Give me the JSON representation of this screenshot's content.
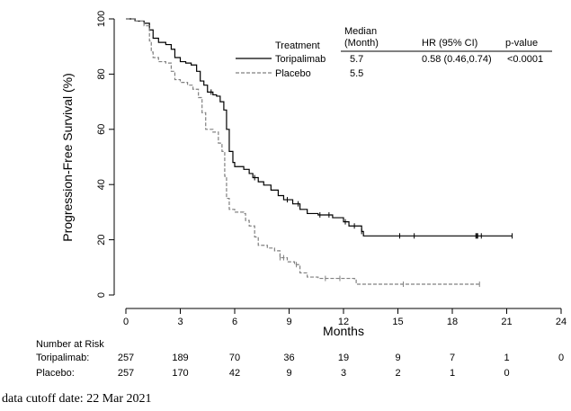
{
  "chart_data": {
    "type": "line",
    "subtype": "kaplan-meier",
    "title": "",
    "xlabel": "Months",
    "ylabel": "Progression-Free Survival (%)",
    "xlim": [
      0,
      24
    ],
    "ylim": [
      0,
      100
    ],
    "xticks": [
      0,
      3,
      6,
      9,
      12,
      15,
      18,
      21,
      24
    ],
    "yticks": [
      0,
      20,
      40,
      60,
      80,
      100
    ],
    "grid": false,
    "legend": {
      "placement": "top-right",
      "title": "Treatment",
      "header_median": "Median\n(Month)",
      "header_median_line1": "Median",
      "header_median_line2": "(Month)",
      "header_hr": "HR (95% CI)",
      "header_p": "p-value",
      "entries": [
        {
          "name": "Toripalimab",
          "median": "5.7",
          "hr": "0.58 (0.46,0.74)",
          "p": "<0.0001",
          "style": "solid",
          "color": "#000000"
        },
        {
          "name": "Placebo",
          "median": "5.5",
          "hr": "",
          "p": "",
          "style": "dashed",
          "color": "#808080"
        }
      ]
    },
    "series": [
      {
        "name": "Toripalimab",
        "color": "#000000",
        "style": "solid",
        "points": [
          [
            0,
            100
          ],
          [
            0.5,
            99.2
          ],
          [
            1.0,
            98.4
          ],
          [
            1.3,
            96
          ],
          [
            1.5,
            93
          ],
          [
            1.8,
            91.5
          ],
          [
            2.2,
            90.7
          ],
          [
            2.5,
            89
          ],
          [
            2.7,
            86
          ],
          [
            3.0,
            84.5
          ],
          [
            3.3,
            84
          ],
          [
            3.6,
            83.3
          ],
          [
            3.9,
            81
          ],
          [
            4.1,
            77.5
          ],
          [
            4.3,
            76
          ],
          [
            4.5,
            73.5
          ],
          [
            4.8,
            72.5
          ],
          [
            5.0,
            72
          ],
          [
            5.2,
            70
          ],
          [
            5.4,
            67
          ],
          [
            5.55,
            60
          ],
          [
            5.7,
            52
          ],
          [
            5.9,
            48
          ],
          [
            6.0,
            46.5
          ],
          [
            6.5,
            45.5
          ],
          [
            6.8,
            44
          ],
          [
            7.0,
            42.5
          ],
          [
            7.3,
            41
          ],
          [
            7.6,
            39.8
          ],
          [
            8.0,
            38
          ],
          [
            8.4,
            36
          ],
          [
            8.7,
            34.5
          ],
          [
            9.2,
            33
          ],
          [
            9.6,
            31
          ],
          [
            10.0,
            29.5
          ],
          [
            10.6,
            29
          ],
          [
            11.4,
            28
          ],
          [
            12.0,
            26.5
          ],
          [
            12.3,
            25
          ],
          [
            12.9,
            25
          ],
          [
            13.0,
            23
          ],
          [
            13.1,
            21.4
          ],
          [
            21.3,
            21.4
          ]
        ],
        "censor_months": [
          4.7,
          7.1,
          8.9,
          9.5,
          10.7,
          11.2,
          12.1,
          12.6,
          13.0,
          15.1,
          15.9,
          19.3,
          19.35,
          19.4,
          19.6,
          21.3
        ]
      },
      {
        "name": "Placebo",
        "color": "#808080",
        "style": "dashed",
        "points": [
          [
            0,
            100
          ],
          [
            0.5,
            99.2
          ],
          [
            1.0,
            97.5
          ],
          [
            1.3,
            92
          ],
          [
            1.4,
            88
          ],
          [
            1.5,
            86
          ],
          [
            1.8,
            84.5
          ],
          [
            2.2,
            84
          ],
          [
            2.5,
            81
          ],
          [
            2.7,
            78
          ],
          [
            3.0,
            77
          ],
          [
            3.4,
            76
          ],
          [
            3.7,
            74.5
          ],
          [
            4.0,
            71.5
          ],
          [
            4.2,
            66
          ],
          [
            4.4,
            60
          ],
          [
            4.8,
            59
          ],
          [
            5.1,
            55
          ],
          [
            5.3,
            52
          ],
          [
            5.45,
            43
          ],
          [
            5.55,
            35
          ],
          [
            5.7,
            31
          ],
          [
            6.0,
            30
          ],
          [
            6.5,
            29.5
          ],
          [
            6.6,
            27
          ],
          [
            6.8,
            25
          ],
          [
            7.1,
            21
          ],
          [
            7.3,
            18
          ],
          [
            7.8,
            17
          ],
          [
            8.2,
            16
          ],
          [
            8.5,
            13.5
          ],
          [
            8.9,
            12
          ],
          [
            9.3,
            11
          ],
          [
            9.6,
            8
          ],
          [
            10.0,
            6.5
          ],
          [
            10.6,
            6
          ],
          [
            12.6,
            5.9
          ],
          [
            12.7,
            3.9
          ],
          [
            19.5,
            3.9
          ]
        ],
        "censor_months": [
          8.5,
          8.7,
          9.4,
          11.0,
          11.8,
          15.3,
          19.5
        ]
      }
    ],
    "risk_table": {
      "title": "Number at Risk",
      "times": [
        0,
        3,
        6,
        9,
        12,
        15,
        18,
        21,
        24
      ],
      "rows": [
        {
          "label": "Toripalimab:",
          "values": [
            "257",
            "189",
            "70",
            "36",
            "19",
            "9",
            "7",
            "1",
            "0"
          ]
        },
        {
          "label": "Placebo:",
          "values": [
            "257",
            "170",
            "42",
            "9",
            "3",
            "2",
            "1",
            "0",
            ""
          ]
        }
      ]
    }
  },
  "footnote": "data cutoff date: 22 Mar 2021"
}
